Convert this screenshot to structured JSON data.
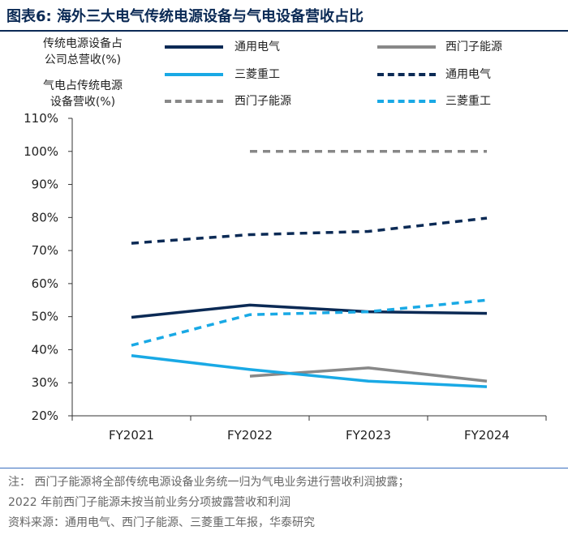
{
  "header": {
    "title": "图表6:  海外三大电气传统电源设备与气电设备营收占比"
  },
  "colors": {
    "brand": "#0b2a55",
    "ge": "#0b2a55",
    "siemens": "#888888",
    "mhi": "#19a9e5"
  },
  "chart_data": {
    "type": "line",
    "categories": [
      "FY2021",
      "FY2022",
      "FY2023",
      "FY2024"
    ],
    "axis_titles": {
      "solid": [
        "传统电源设备占",
        "公司总营收(%)"
      ],
      "dashed": [
        "气电占传统电源",
        "设备营收(%)"
      ]
    },
    "ylim": [
      20,
      110
    ],
    "yticks": [
      "110%",
      "100%",
      "90%",
      "80%",
      "70%",
      "60%",
      "50%",
      "40%",
      "30%",
      "20%"
    ],
    "grid": false,
    "legend_position": "top",
    "series": [
      {
        "name": "通用电气",
        "style": "solid",
        "color": "#0b2a55",
        "values": [
          49.8,
          53.5,
          51.5,
          51.0
        ]
      },
      {
        "name": "西门子能源",
        "style": "solid",
        "color": "#888888",
        "values": [
          null,
          32.0,
          34.5,
          30.5
        ]
      },
      {
        "name": "三菱重工",
        "style": "solid",
        "color": "#19a9e5",
        "values": [
          38.2,
          34.0,
          30.5,
          28.8
        ]
      },
      {
        "name": "通用电气",
        "style": "dashed",
        "color": "#0b2a55",
        "values": [
          72.2,
          74.8,
          75.8,
          79.8
        ]
      },
      {
        "name": "西门子能源",
        "style": "dashed",
        "color": "#888888",
        "values": [
          null,
          100.0,
          100.0,
          100.0
        ]
      },
      {
        "name": "三菱重工",
        "style": "dashed",
        "color": "#19a9e5",
        "values": [
          41.3,
          50.6,
          51.5,
          55.0
        ]
      }
    ]
  },
  "notes": {
    "line1": "注：  西门子能源将全部传统电源设备业务统一归为气电业务进行营收利润披露；",
    "line2": "2022 年前西门子能源未按当前业务分项披露营收和利润",
    "source": "资料来源：通用电气、西门子能源、三菱重工年报，华泰研究"
  }
}
